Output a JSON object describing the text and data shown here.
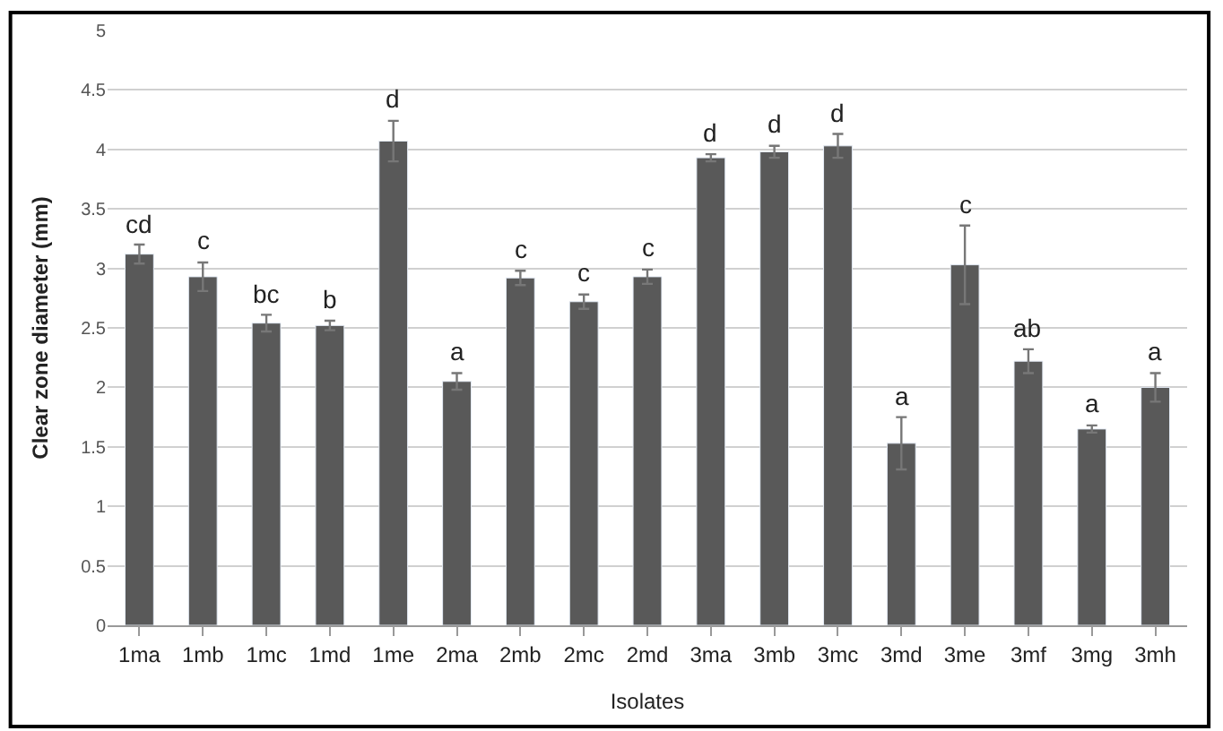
{
  "chart_data": {
    "type": "bar",
    "xlabel": "Isolates",
    "ylabel": "Clear zone diameter (mm)",
    "categories": [
      "1ma",
      "1mb",
      "1mc",
      "1md",
      "1me",
      "2ma",
      "2mb",
      "2mc",
      "2md",
      "3ma",
      "3mb",
      "3mc",
      "3md",
      "3me",
      "3mf",
      "3mg",
      "3mh"
    ],
    "values": [
      3.12,
      2.93,
      2.54,
      2.52,
      4.07,
      2.05,
      2.92,
      2.72,
      2.93,
      3.93,
      3.98,
      4.03,
      1.53,
      3.03,
      2.22,
      1.65,
      2.0
    ],
    "errors": [
      0.08,
      0.12,
      0.07,
      0.04,
      0.17,
      0.07,
      0.06,
      0.06,
      0.06,
      0.03,
      0.05,
      0.1,
      0.22,
      0.33,
      0.1,
      0.03,
      0.12
    ],
    "value_labels": [
      "cd",
      "c",
      "bc",
      "b",
      "d",
      "a",
      "c",
      "c",
      "c",
      "d",
      "d",
      "d",
      "a",
      "c",
      "ab",
      "a",
      "a"
    ],
    "color": "#595959",
    "ylim": [
      0,
      5
    ],
    "yticks": [
      0,
      0.5,
      1,
      1.5,
      2,
      2.5,
      3,
      3.5,
      4,
      4.5,
      5
    ],
    "grid": "y"
  }
}
